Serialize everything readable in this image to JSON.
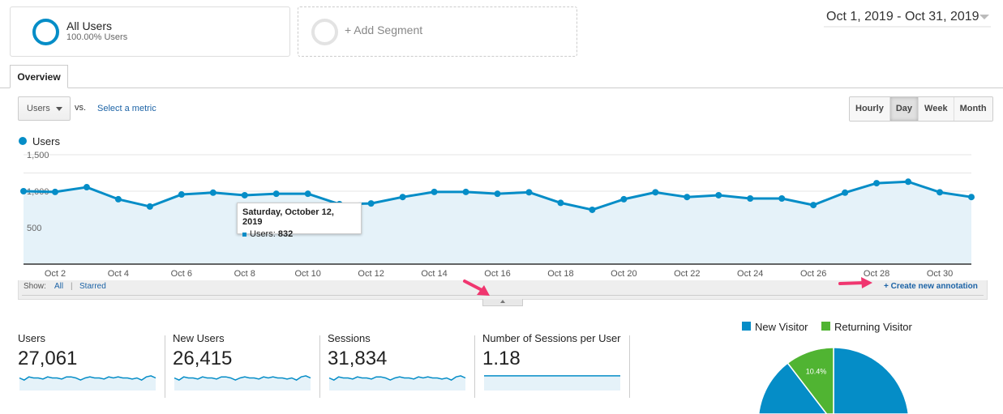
{
  "segments": {
    "all_users": {
      "title": "All Users",
      "subtitle": "100.00% Users"
    },
    "add_label": "+ Add Segment"
  },
  "date_range": "Oct 1, 2019 - Oct 31, 2019",
  "tabs": [
    {
      "label": "Overview"
    }
  ],
  "metric_selector": {
    "value": "Users",
    "vs": "vs.",
    "select_link": "Select a metric"
  },
  "granularity": [
    {
      "label": "Hourly"
    },
    {
      "label": "Day",
      "active": true
    },
    {
      "label": "Week"
    },
    {
      "label": "Month"
    }
  ],
  "colors": {
    "accent": "#058dc7",
    "returning": "#50b432",
    "fill": "#e5f2f9",
    "arrow": "#f0366f"
  },
  "annotations": {
    "show_label": "Show:",
    "all": "All",
    "separator": "|",
    "starred": "Starred",
    "create": "+ Create new annotation"
  },
  "tooltip": {
    "date": "Saturday, October 12, 2019",
    "label": "Users:",
    "value": "832"
  },
  "chart_data": {
    "type": "line",
    "title": "",
    "legend": [
      "Users"
    ],
    "xlabel": "",
    "ylabel": "",
    "ylim": [
      0,
      1500
    ],
    "yticks": [
      "500",
      "1,000",
      "1,500"
    ],
    "ytick_values": [
      500,
      1000,
      1500
    ],
    "xtick_labels": [
      "Oct 2",
      "Oct 4",
      "Oct 6",
      "Oct 8",
      "Oct 10",
      "Oct 12",
      "Oct 14",
      "Oct 16",
      "Oct 18",
      "Oct 20",
      "Oct 22",
      "Oct 24",
      "Oct 26",
      "Oct 28",
      "Oct 30"
    ],
    "x": [
      1,
      2,
      3,
      4,
      5,
      6,
      7,
      8,
      9,
      10,
      11,
      12,
      13,
      14,
      15,
      16,
      17,
      18,
      19,
      20,
      21,
      22,
      23,
      24,
      25,
      26,
      27,
      28,
      29,
      30,
      31
    ],
    "series": [
      {
        "name": "Users",
        "values": [
          1000,
          990,
          1055,
          890,
          790,
          955,
          980,
          945,
          965,
          965,
          822,
          832,
          920,
          990,
          990,
          965,
          985,
          840,
          745,
          890,
          985,
          920,
          945,
          900,
          900,
          810,
          980,
          1110,
          1130,
          985,
          920
        ]
      }
    ]
  },
  "scorecards": [
    {
      "label": "Users",
      "value": "27,061",
      "spark": [
        5,
        3,
        6,
        5,
        5,
        4,
        6,
        5,
        5,
        4,
        6,
        6,
        5,
        3,
        5,
        6,
        5,
        5,
        4,
        6,
        5,
        6,
        5,
        5,
        4,
        5,
        3,
        6,
        7,
        5
      ]
    },
    {
      "label": "New Users",
      "value": "26,415",
      "spark": [
        5,
        3,
        6,
        5,
        5,
        4,
        6,
        5,
        5,
        4,
        6,
        6,
        5,
        3,
        5,
        6,
        5,
        5,
        4,
        6,
        5,
        6,
        5,
        5,
        4,
        5,
        3,
        6,
        7,
        5
      ]
    },
    {
      "label": "Sessions",
      "value": "31,834",
      "spark": [
        5,
        3,
        6,
        5,
        5,
        4,
        6,
        5,
        5,
        4,
        6,
        6,
        5,
        3,
        5,
        6,
        5,
        5,
        4,
        6,
        5,
        6,
        5,
        5,
        4,
        5,
        3,
        6,
        7,
        5
      ]
    },
    {
      "label": "Number of Sessions per User",
      "value": "1.18",
      "spark": [
        7,
        7,
        7,
        7,
        7,
        7,
        7,
        7,
        7,
        7,
        7,
        7,
        7,
        7,
        7,
        7,
        7,
        7,
        7,
        7,
        7,
        7,
        7,
        7,
        7,
        7,
        7,
        7,
        7,
        7
      ]
    }
  ],
  "pie": {
    "legend": [
      {
        "label": "New Visitor",
        "color": "#058dc7"
      },
      {
        "label": "Returning Visitor",
        "color": "#50b432"
      }
    ],
    "slices": [
      {
        "name": "New Visitor",
        "value": 89.6
      },
      {
        "name": "Returning Visitor",
        "value": 10.4,
        "label": "10.4%"
      }
    ]
  }
}
